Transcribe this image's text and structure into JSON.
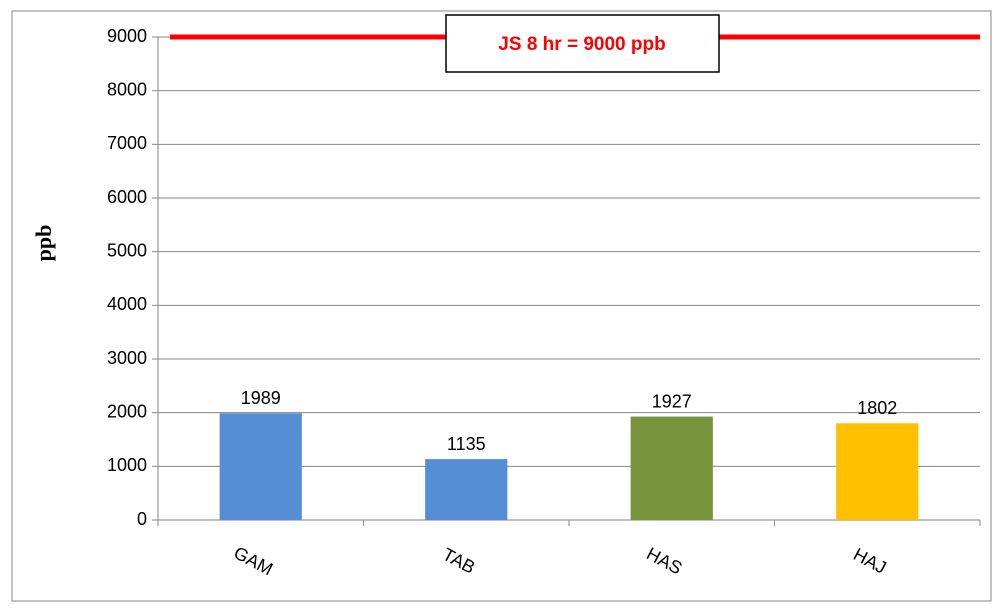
{
  "chart_data": {
    "type": "bar",
    "ylabel": "ppb",
    "categories": [
      "GAM",
      "TAB",
      "HAS",
      "HAJ"
    ],
    "values": [
      1989,
      1135,
      1927,
      1802
    ],
    "colors": [
      "#558ed5",
      "#558ed5",
      "#77933c",
      "#ffc000"
    ],
    "ylim": [
      0,
      9000
    ],
    "yticks": [
      0,
      1000,
      2000,
      3000,
      4000,
      5000,
      6000,
      7000,
      8000,
      9000
    ],
    "grid": true,
    "reference_line": {
      "value": 9000,
      "label": "JS 8 hr = 9000 ppb",
      "color": "#ff0000"
    }
  }
}
